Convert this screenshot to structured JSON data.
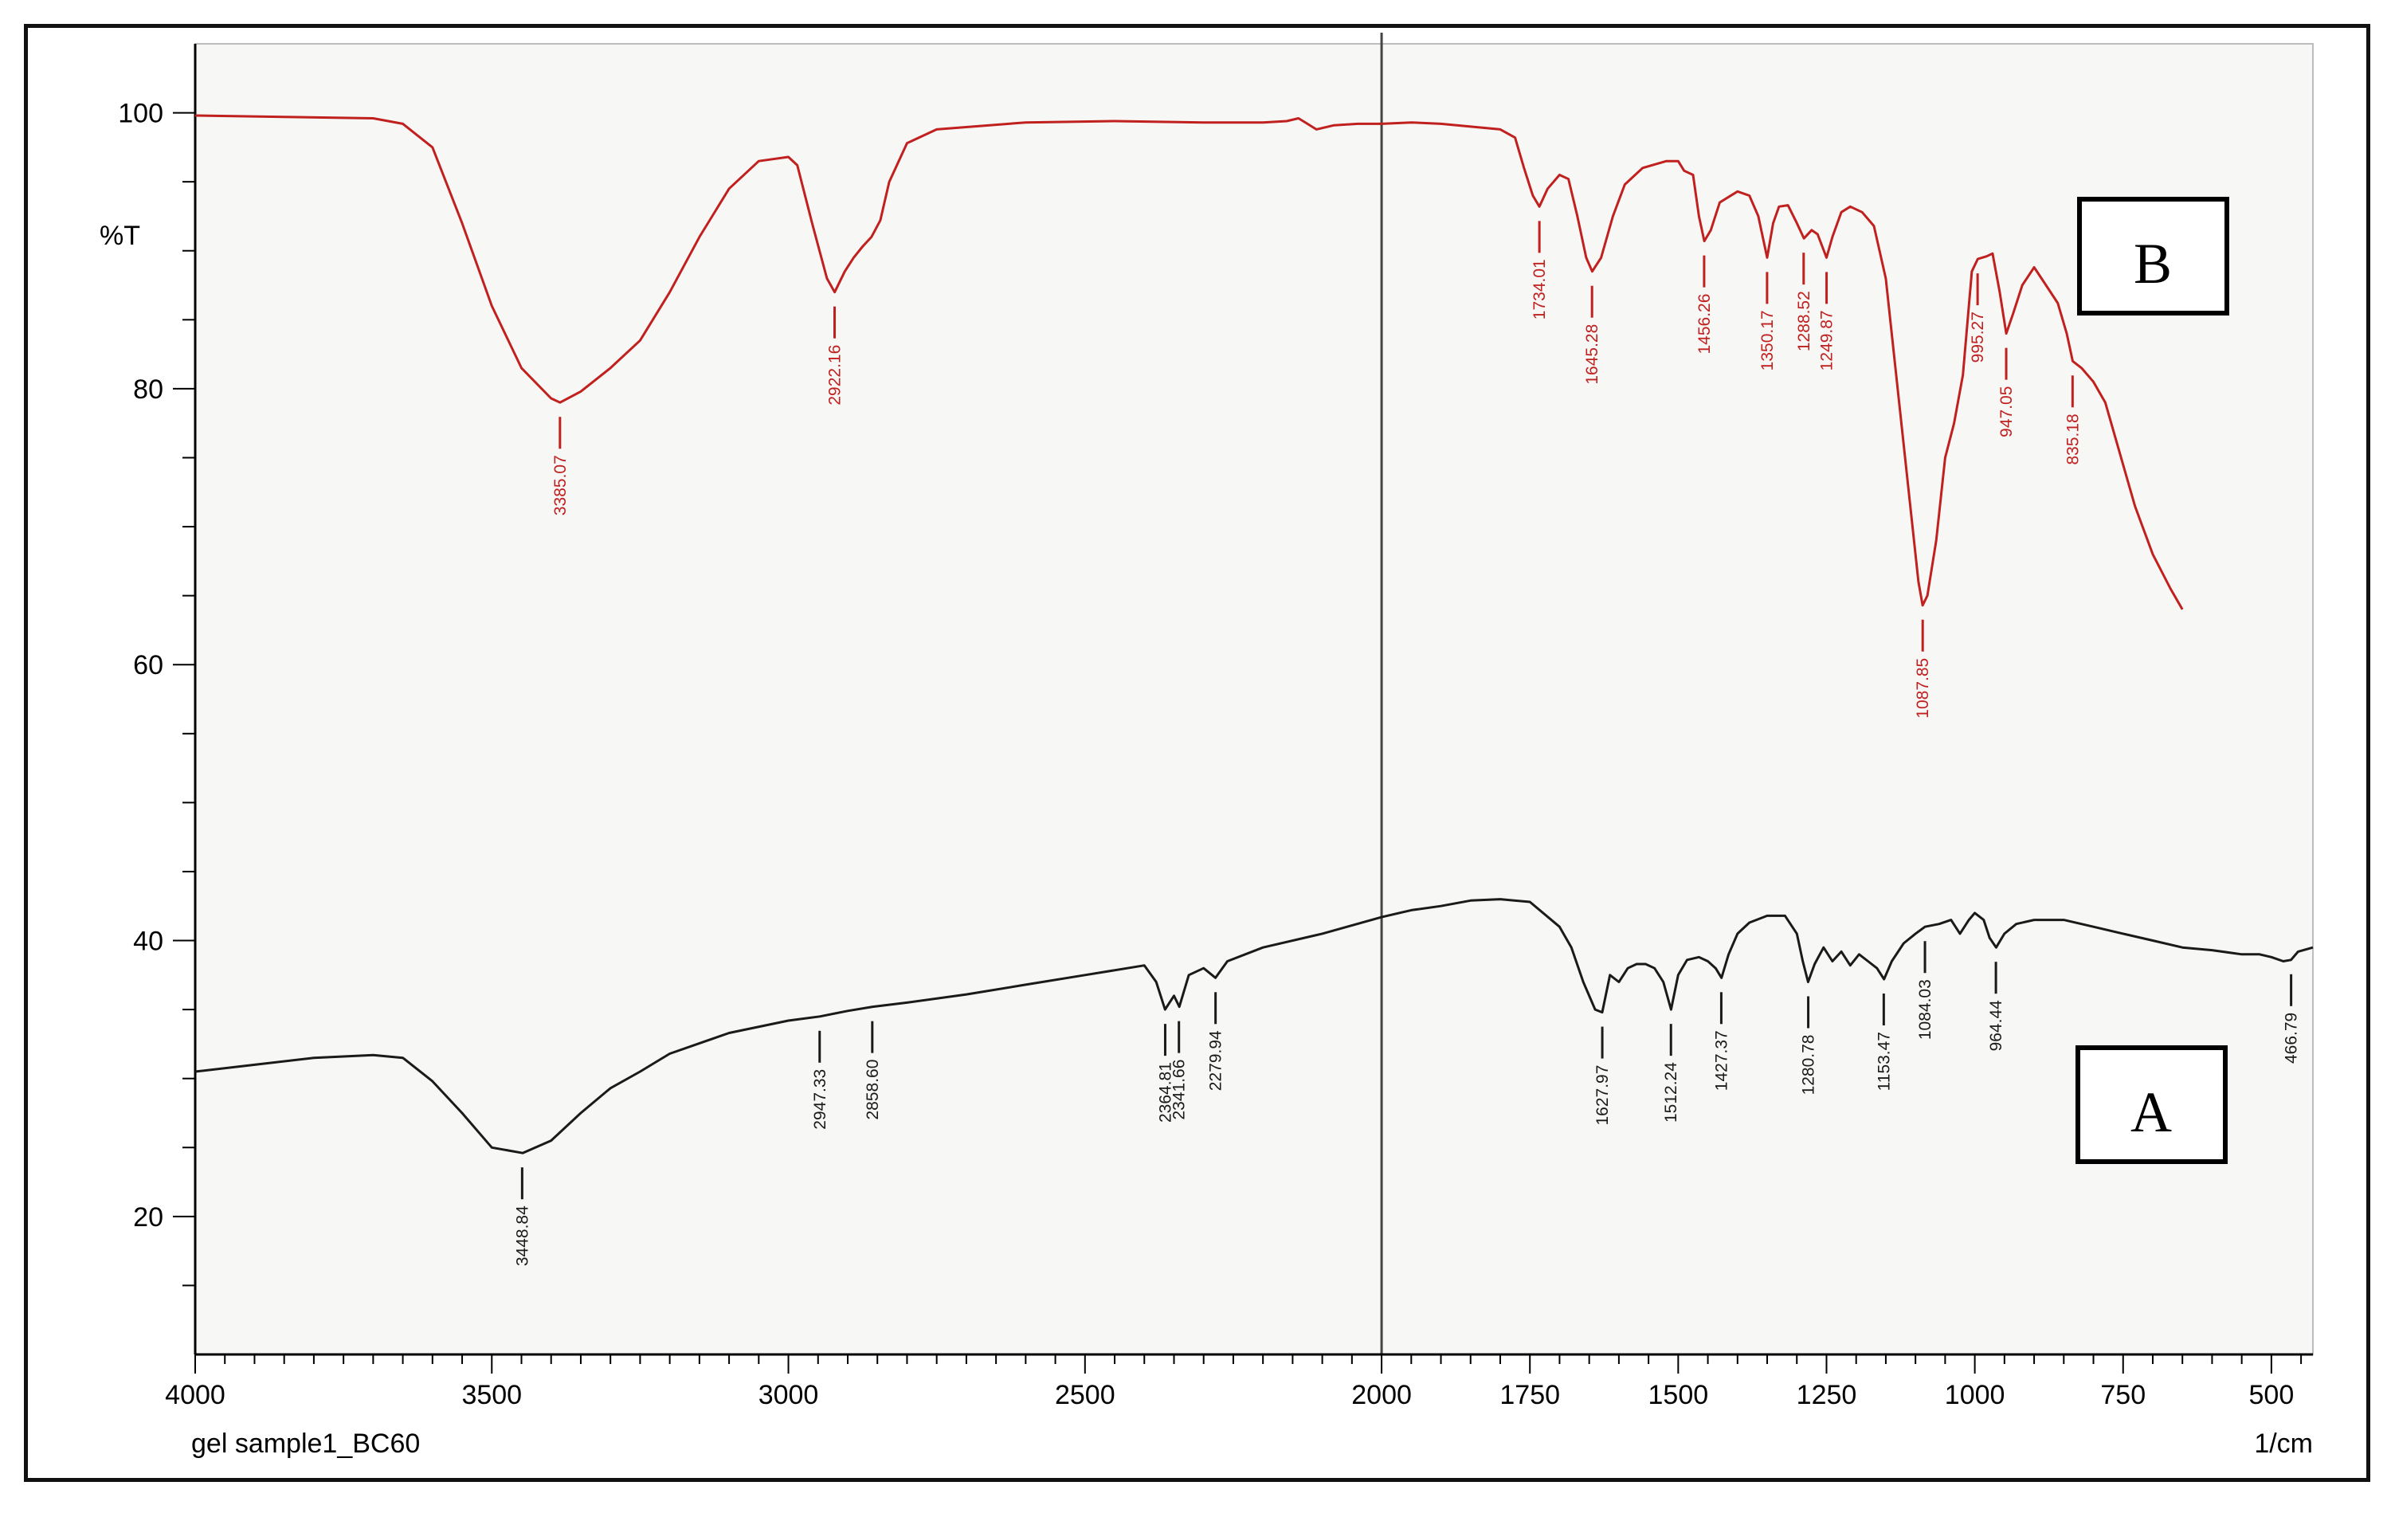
{
  "chart_data": {
    "type": "line",
    "ylabel": "%T",
    "xunit_label": "1/cm",
    "footer_label": "gel sample1_BC60",
    "xlim": [
      4000,
      430
    ],
    "ylim": [
      10,
      105
    ],
    "x_ticks": [
      4000,
      3500,
      3000,
      2500,
      2000,
      1750,
      1500,
      1250,
      1000,
      750,
      500
    ],
    "x_tick_labels": [
      "4000",
      "3500",
      "3000",
      "2500",
      "2000",
      "1750",
      "1500",
      "1250",
      "1000",
      "750",
      "500"
    ],
    "y_ticks": [
      20,
      40,
      60,
      80,
      100
    ],
    "y_tick_labels": [
      "20",
      "40",
      "60",
      "80",
      "100"
    ],
    "vertical_marker_x": 2000,
    "grid": false,
    "colors": {
      "A": "#1a1a1a",
      "B": "#c0201e",
      "footer": "#c0201e"
    },
    "series": [
      {
        "name": "B",
        "box_label": "B",
        "color": "#c0201e",
        "points": [
          [
            4000,
            99.8
          ],
          [
            3850,
            99.7
          ],
          [
            3700,
            99.6
          ],
          [
            3650,
            99.2
          ],
          [
            3600,
            97.5
          ],
          [
            3550,
            92.0
          ],
          [
            3500,
            86.0
          ],
          [
            3450,
            81.5
          ],
          [
            3400,
            79.3
          ],
          [
            3385,
            79.0
          ],
          [
            3350,
            79.8
          ],
          [
            3300,
            81.5
          ],
          [
            3250,
            83.5
          ],
          [
            3200,
            87.0
          ],
          [
            3150,
            91.0
          ],
          [
            3100,
            94.5
          ],
          [
            3050,
            96.5
          ],
          [
            3000,
            96.8
          ],
          [
            2985,
            96.2
          ],
          [
            2960,
            92.0
          ],
          [
            2935,
            88.0
          ],
          [
            2922,
            87.0
          ],
          [
            2905,
            88.5
          ],
          [
            2890,
            89.5
          ],
          [
            2875,
            90.3
          ],
          [
            2860,
            91.0
          ],
          [
            2845,
            92.2
          ],
          [
            2830,
            95.0
          ],
          [
            2800,
            97.8
          ],
          [
            2750,
            98.8
          ],
          [
            2600,
            99.3
          ],
          [
            2450,
            99.4
          ],
          [
            2300,
            99.3
          ],
          [
            2200,
            99.3
          ],
          [
            2160,
            99.4
          ],
          [
            2140,
            99.6
          ],
          [
            2125,
            99.2
          ],
          [
            2110,
            98.8
          ],
          [
            2080,
            99.1
          ],
          [
            2040,
            99.2
          ],
          [
            2000,
            99.2
          ],
          [
            1950,
            99.3
          ],
          [
            1900,
            99.2
          ],
          [
            1850,
            99.0
          ],
          [
            1800,
            98.8
          ],
          [
            1775,
            98.2
          ],
          [
            1760,
            96.0
          ],
          [
            1745,
            94.0
          ],
          [
            1734,
            93.2
          ],
          [
            1720,
            94.5
          ],
          [
            1700,
            95.5
          ],
          [
            1685,
            95.2
          ],
          [
            1670,
            92.5
          ],
          [
            1655,
            89.5
          ],
          [
            1645,
            88.5
          ],
          [
            1630,
            89.5
          ],
          [
            1610,
            92.5
          ],
          [
            1590,
            94.8
          ],
          [
            1560,
            96.0
          ],
          [
            1520,
            96.5
          ],
          [
            1500,
            96.5
          ],
          [
            1490,
            95.8
          ],
          [
            1475,
            95.5
          ],
          [
            1465,
            92.5
          ],
          [
            1456,
            90.7
          ],
          [
            1445,
            91.5
          ],
          [
            1430,
            93.5
          ],
          [
            1400,
            94.3
          ],
          [
            1380,
            94.0
          ],
          [
            1365,
            92.5
          ],
          [
            1350,
            89.5
          ],
          [
            1340,
            92.0
          ],
          [
            1330,
            93.2
          ],
          [
            1315,
            93.3
          ],
          [
            1300,
            92.0
          ],
          [
            1288,
            90.9
          ],
          [
            1275,
            91.5
          ],
          [
            1265,
            91.2
          ],
          [
            1250,
            89.5
          ],
          [
            1240,
            91.0
          ],
          [
            1225,
            92.8
          ],
          [
            1210,
            93.2
          ],
          [
            1190,
            92.8
          ],
          [
            1170,
            91.8
          ],
          [
            1150,
            88.0
          ],
          [
            1130,
            80.0
          ],
          [
            1110,
            72.0
          ],
          [
            1095,
            66.0
          ],
          [
            1088,
            64.3
          ],
          [
            1080,
            65.0
          ],
          [
            1065,
            69.0
          ],
          [
            1050,
            75.0
          ],
          [
            1035,
            77.5
          ],
          [
            1020,
            81.0
          ],
          [
            1005,
            88.5
          ],
          [
            995,
            89.4
          ],
          [
            980,
            89.6
          ],
          [
            970,
            89.8
          ],
          [
            958,
            87.0
          ],
          [
            947,
            84.0
          ],
          [
            935,
            85.5
          ],
          [
            920,
            87.5
          ],
          [
            900,
            88.8
          ],
          [
            880,
            87.5
          ],
          [
            860,
            86.2
          ],
          [
            845,
            84.0
          ],
          [
            835,
            82.0
          ],
          [
            820,
            81.5
          ],
          [
            800,
            80.5
          ],
          [
            780,
            79.0
          ],
          [
            760,
            76.0
          ],
          [
            730,
            71.5
          ],
          [
            700,
            68.0
          ],
          [
            670,
            65.5
          ],
          [
            650,
            64.0
          ]
        ],
        "peaks": [
          {
            "x": 3385.07,
            "y": 79.0,
            "label": "3385.07"
          },
          {
            "x": 2922.16,
            "y": 87.0,
            "label": "2922.16"
          },
          {
            "x": 1734.01,
            "y": 93.2,
            "label": "1734.01"
          },
          {
            "x": 1645.28,
            "y": 88.5,
            "label": "1645.28"
          },
          {
            "x": 1456.26,
            "y": 90.7,
            "label": "1456.26"
          },
          {
            "x": 1350.17,
            "y": 89.5,
            "label": "1350.17"
          },
          {
            "x": 1288.52,
            "y": 90.9,
            "label": "1288.52"
          },
          {
            "x": 1249.87,
            "y": 89.5,
            "label": "1249.87"
          },
          {
            "x": 1087.85,
            "y": 64.3,
            "label": "1087.85"
          },
          {
            "x": 995.27,
            "y": 89.4,
            "label": "995.27"
          },
          {
            "x": 947.05,
            "y": 84.0,
            "label": "947.05"
          },
          {
            "x": 835.18,
            "y": 82.0,
            "label": "835.18"
          }
        ]
      },
      {
        "name": "A",
        "box_label": "A",
        "color": "#1a1a1a",
        "points": [
          [
            4000,
            30.5
          ],
          [
            3900,
            31.0
          ],
          [
            3800,
            31.5
          ],
          [
            3700,
            31.7
          ],
          [
            3650,
            31.5
          ],
          [
            3600,
            29.8
          ],
          [
            3550,
            27.5
          ],
          [
            3500,
            25.0
          ],
          [
            3448,
            24.6
          ],
          [
            3400,
            25.5
          ],
          [
            3350,
            27.5
          ],
          [
            3300,
            29.3
          ],
          [
            3250,
            30.5
          ],
          [
            3200,
            31.8
          ],
          [
            3100,
            33.3
          ],
          [
            3000,
            34.2
          ],
          [
            2947,
            34.5
          ],
          [
            2900,
            34.9
          ],
          [
            2858,
            35.2
          ],
          [
            2800,
            35.5
          ],
          [
            2700,
            36.1
          ],
          [
            2600,
            36.8
          ],
          [
            2500,
            37.5
          ],
          [
            2400,
            38.2
          ],
          [
            2380,
            37.0
          ],
          [
            2365,
            35.0
          ],
          [
            2350,
            36.0
          ],
          [
            2341,
            35.2
          ],
          [
            2325,
            37.5
          ],
          [
            2300,
            38.0
          ],
          [
            2280,
            37.3
          ],
          [
            2260,
            38.5
          ],
          [
            2200,
            39.5
          ],
          [
            2100,
            40.5
          ],
          [
            2000,
            41.7
          ],
          [
            1950,
            42.2
          ],
          [
            1900,
            42.5
          ],
          [
            1850,
            42.9
          ],
          [
            1800,
            43.0
          ],
          [
            1750,
            42.8
          ],
          [
            1700,
            41.0
          ],
          [
            1680,
            39.5
          ],
          [
            1660,
            37.0
          ],
          [
            1640,
            35.0
          ],
          [
            1628,
            34.8
          ],
          [
            1615,
            37.5
          ],
          [
            1600,
            37.0
          ],
          [
            1585,
            38.0
          ],
          [
            1570,
            38.3
          ],
          [
            1555,
            38.3
          ],
          [
            1540,
            38.0
          ],
          [
            1525,
            37.0
          ],
          [
            1512,
            35.0
          ],
          [
            1500,
            37.5
          ],
          [
            1485,
            38.6
          ],
          [
            1465,
            38.8
          ],
          [
            1450,
            38.5
          ],
          [
            1437,
            38.0
          ],
          [
            1427,
            37.3
          ],
          [
            1415,
            39.0
          ],
          [
            1400,
            40.5
          ],
          [
            1380,
            41.3
          ],
          [
            1350,
            41.8
          ],
          [
            1320,
            41.8
          ],
          [
            1300,
            40.5
          ],
          [
            1290,
            38.5
          ],
          [
            1281,
            37.0
          ],
          [
            1270,
            38.3
          ],
          [
            1255,
            39.5
          ],
          [
            1240,
            38.5
          ],
          [
            1225,
            39.2
          ],
          [
            1210,
            38.2
          ],
          [
            1195,
            39.0
          ],
          [
            1180,
            38.5
          ],
          [
            1165,
            38.0
          ],
          [
            1153,
            37.2
          ],
          [
            1140,
            38.5
          ],
          [
            1120,
            39.8
          ],
          [
            1100,
            40.5
          ],
          [
            1084,
            41.0
          ],
          [
            1060,
            41.2
          ],
          [
            1040,
            41.5
          ],
          [
            1025,
            40.5
          ],
          [
            1010,
            41.5
          ],
          [
            1000,
            42.0
          ],
          [
            985,
            41.5
          ],
          [
            975,
            40.2
          ],
          [
            964,
            39.5
          ],
          [
            950,
            40.5
          ],
          [
            930,
            41.2
          ],
          [
            900,
            41.5
          ],
          [
            850,
            41.5
          ],
          [
            800,
            41.0
          ],
          [
            750,
            40.5
          ],
          [
            700,
            40.0
          ],
          [
            650,
            39.5
          ],
          [
            600,
            39.3
          ],
          [
            550,
            39.0
          ],
          [
            520,
            39.0
          ],
          [
            500,
            38.8
          ],
          [
            480,
            38.5
          ],
          [
            467,
            38.6
          ],
          [
            455,
            39.2
          ],
          [
            430,
            39.5
          ]
        ],
        "peaks": [
          {
            "x": 3448.84,
            "y": 24.6,
            "label": "3448.84"
          },
          {
            "x": 2947.33,
            "y": 34.5,
            "label": "2947.33"
          },
          {
            "x": 2858.6,
            "y": 35.2,
            "label": "2858.60"
          },
          {
            "x": 2364.81,
            "y": 35.0,
            "label": "2364.81"
          },
          {
            "x": 2341.66,
            "y": 35.2,
            "label": "2341.66"
          },
          {
            "x": 2279.94,
            "y": 37.3,
            "label": "2279.94"
          },
          {
            "x": 1627.97,
            "y": 34.8,
            "label": "1627.97"
          },
          {
            "x": 1512.24,
            "y": 35.0,
            "label": "1512.24"
          },
          {
            "x": 1427.37,
            "y": 37.3,
            "label": "1427.37"
          },
          {
            "x": 1280.78,
            "y": 37.0,
            "label": "1280.78"
          },
          {
            "x": 1153.47,
            "y": 37.2,
            "label": "1153.47"
          },
          {
            "x": 1084.03,
            "y": 41.0,
            "label": "1084.03"
          },
          {
            "x": 964.44,
            "y": 39.5,
            "label": "964.44"
          },
          {
            "x": 466.79,
            "y": 38.6,
            "label": "466.79"
          }
        ]
      }
    ]
  }
}
